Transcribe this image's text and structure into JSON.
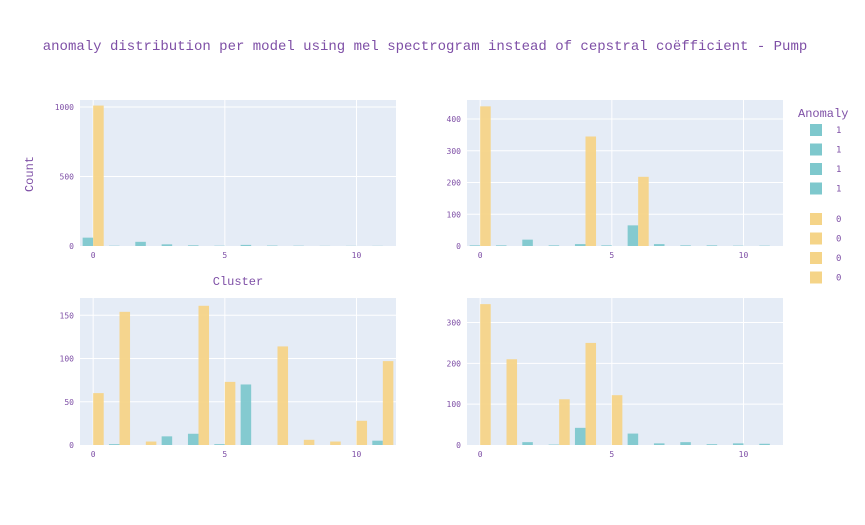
{
  "colors": {
    "anomaly_1": "#7ec8cd",
    "anomaly_0": "#f5d488",
    "plot_bg": "#e5ecf6",
    "grid": "#ffffff",
    "text": "#7e4fa6"
  },
  "chart_data": {
    "type": "bar",
    "title": "anomaly distribution per model using mel spectrogram instead of cepstral coëfficient - Pump",
    "ylabel": "Count",
    "xlabel": "Cluster",
    "legend": {
      "title": "Anomaly",
      "placement": "right",
      "entries": [
        "1",
        "1",
        "1",
        "1",
        "0",
        "0",
        "0",
        "0"
      ]
    },
    "grid": true,
    "subplots": [
      {
        "xlim": [
          -0.5,
          11.5
        ],
        "ylim": [
          0,
          1050
        ],
        "xticks": [
          0,
          5,
          10
        ],
        "yticks": [
          0,
          500,
          1000
        ],
        "series": [
          {
            "anomaly": "1",
            "x": [
              0,
              1,
              2,
              3,
              4,
              5,
              6,
              7,
              8,
              9,
              10,
              11
            ],
            "values": [
              60,
              2,
              30,
              12,
              5,
              2,
              8,
              3,
              2,
              1,
              1,
              1
            ]
          },
          {
            "anomaly": "0",
            "x": [
              0
            ],
            "values": [
              1010
            ]
          }
        ]
      },
      {
        "xlim": [
          -0.5,
          11.5
        ],
        "ylim": [
          0,
          460
        ],
        "xticks": [
          0,
          5,
          10
        ],
        "yticks": [
          0,
          100,
          200,
          300,
          400
        ],
        "series": [
          {
            "anomaly": "1",
            "x": [
              0,
              1,
              2,
              3,
              4,
              5,
              6,
              7,
              8,
              9,
              10,
              11
            ],
            "values": [
              2,
              2,
              20,
              2,
              6,
              2,
              65,
              6,
              2,
              2,
              1,
              1
            ]
          },
          {
            "anomaly": "0",
            "x": [
              0,
              4,
              6
            ],
            "values": [
              440,
              345,
              218
            ]
          }
        ]
      },
      {
        "xlim": [
          -0.5,
          11.5
        ],
        "ylim": [
          0,
          170
        ],
        "xticks": [
          0,
          5,
          10
        ],
        "yticks": [
          0,
          50,
          100,
          150
        ],
        "series": [
          {
            "anomaly": "1",
            "x": [
              1,
              3,
              4,
              5,
              6,
              11
            ],
            "values": [
              1,
              10,
              13,
              1,
              70,
              5
            ]
          },
          {
            "anomaly": "0",
            "x": [
              0,
              1,
              2,
              4,
              5,
              7,
              8,
              9,
              10,
              11
            ],
            "values": [
              60,
              154,
              4,
              161,
              73,
              114,
              6,
              4,
              28,
              97
            ]
          }
        ]
      },
      {
        "xlim": [
          -0.5,
          11.5
        ],
        "ylim": [
          0,
          360
        ],
        "xticks": [
          0,
          5,
          10
        ],
        "yticks": [
          0,
          100,
          200,
          300
        ],
        "series": [
          {
            "anomaly": "1",
            "x": [
              2,
              3,
              4,
              6,
              7,
              8,
              9,
              10,
              11
            ],
            "values": [
              7,
              1,
              42,
              28,
              4,
              7,
              2,
              4,
              3
            ]
          },
          {
            "anomaly": "0",
            "x": [
              0,
              1,
              3,
              4,
              5
            ],
            "values": [
              345,
              210,
              112,
              250,
              122
            ]
          }
        ]
      }
    ]
  }
}
